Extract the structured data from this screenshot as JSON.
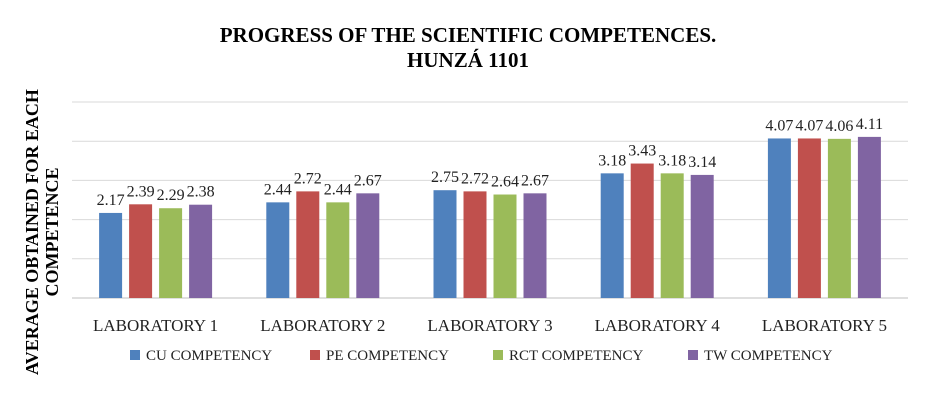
{
  "chart_data": {
    "type": "bar",
    "title": [
      "PROGRESS OF THE SCIENTIFIC COMPETENCES.",
      "HUNZÁ 1101"
    ],
    "xlabel": "",
    "ylabel": [
      "AVERAGE OBTAINED FOR EACH",
      "COMPETENCE"
    ],
    "ylim": [
      0,
      5
    ],
    "grid": true,
    "legend_position": "bottom",
    "categories": [
      "LABORATORY 1",
      "LABORATORY 2",
      "LABORATORY 3",
      "LABORATORY 4",
      "LABORATORY 5"
    ],
    "series": [
      {
        "name": "CU COMPETENCY",
        "color": "#4f81bd",
        "values": [
          2.17,
          2.44,
          2.75,
          3.18,
          4.07
        ]
      },
      {
        "name": "PE COMPETENCY",
        "color": "#c0504d",
        "values": [
          2.39,
          2.72,
          2.72,
          3.43,
          4.07
        ]
      },
      {
        "name": "RCT COMPETENCY",
        "color": "#9bbb59",
        "values": [
          2.29,
          2.44,
          2.64,
          3.18,
          4.06
        ]
      },
      {
        "name": "TW COMPETENCY",
        "color": "#8064a2",
        "values": [
          2.38,
          2.67,
          2.67,
          3.14,
          4.11
        ]
      }
    ]
  }
}
